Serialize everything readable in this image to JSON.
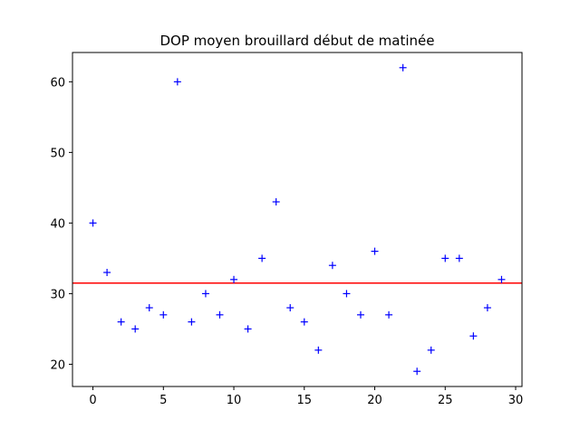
{
  "chart_data": {
    "type": "scatter",
    "title": "DOP moyen brouillard début de matinée",
    "xlabel": "",
    "ylabel": "",
    "xlim": [
      -1.45,
      30.45
    ],
    "ylim": [
      16.85,
      64.15
    ],
    "xticks": [
      0,
      5,
      10,
      15,
      20,
      25,
      30
    ],
    "yticks": [
      20,
      30,
      40,
      50,
      60
    ],
    "grid": false,
    "marker": "+",
    "marker_color": "#0000ff",
    "series": [
      {
        "x": [
          0,
          1,
          2,
          3,
          4,
          5,
          6,
          7,
          8,
          9,
          10,
          11,
          12,
          13,
          14,
          15,
          16,
          17,
          18,
          19,
          20,
          21,
          22,
          23,
          24,
          25,
          26,
          27,
          28,
          29
        ],
        "y": [
          40,
          33,
          26,
          25,
          28,
          27,
          60,
          26,
          30,
          27,
          32,
          25,
          35,
          43,
          28,
          26,
          22,
          34,
          30,
          27,
          36,
          27,
          62,
          19,
          22,
          35,
          35,
          24,
          28,
          32
        ]
      }
    ],
    "mean_line": {
      "y": 31.5,
      "color": "#ff0000"
    }
  }
}
